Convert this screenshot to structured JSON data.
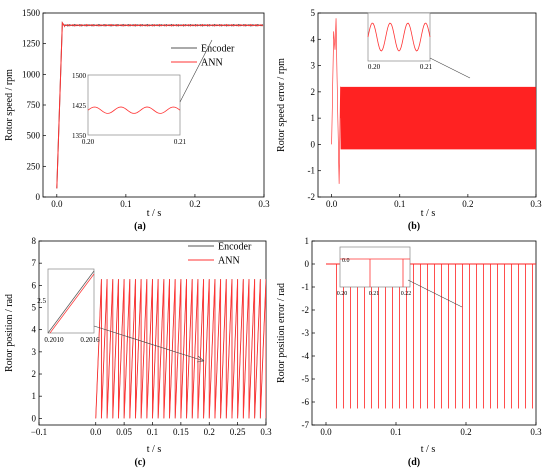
{
  "chart_data": [
    {
      "id": "a",
      "type": "line",
      "panel_label": "(a)",
      "title": "",
      "xlabel": "t / s",
      "ylabel": "Rotor speed / rpm",
      "xlim": [
        -0.02,
        0.3
      ],
      "ylim": [
        0,
        1500
      ],
      "xticks": [
        0.0,
        0.1,
        0.2,
        0.3
      ],
      "xtick_labels": [
        "0.0",
        "0.1",
        "0.2",
        "0.3"
      ],
      "yticks": [
        0,
        250,
        500,
        750,
        1000,
        1250,
        1500
      ],
      "ytick_labels": [
        "0",
        "250",
        "500",
        "750",
        "1000",
        "1250",
        "1500"
      ],
      "legend": {
        "placement": "right",
        "entries": [
          {
            "name": "Encoder",
            "color": "#555555"
          },
          {
            "name": "ANN",
            "color": "#ff3333"
          }
        ]
      },
      "series": [
        {
          "name": "Encoder",
          "color": "#555555",
          "kind": "speed",
          "steady": 1400
        },
        {
          "name": "ANN",
          "color": "#ff3333",
          "kind": "speed",
          "steady": 1400
        }
      ],
      "inset": {
        "xlim": [
          0.2,
          0.21
        ],
        "ylim": [
          1350,
          1500
        ],
        "xtick_labels": [
          "0.20",
          "0.21"
        ],
        "ytick_labels": [
          "1500",
          "1425",
          "1350"
        ],
        "steady": 1412,
        "amplitude": 8,
        "cycles": 3.5
      }
    },
    {
      "id": "b",
      "type": "line",
      "panel_label": "(b)",
      "title": "",
      "xlabel": "t / s",
      "ylabel": "Rotor speed error / rpm",
      "xlim": [
        -0.02,
        0.3
      ],
      "ylim": [
        -2,
        5
      ],
      "xticks": [
        0.0,
        0.1,
        0.2,
        0.3
      ],
      "xtick_labels": [
        "0.0",
        "0.1",
        "0.2",
        "0.3"
      ],
      "yticks": [
        -2,
        -1,
        0,
        1,
        2,
        3,
        4,
        5
      ],
      "ytick_labels": [
        "-2",
        "-1",
        "0",
        "1",
        "2",
        "3",
        "4",
        "5"
      ],
      "series": [
        {
          "name": "",
          "color": "#ff2222",
          "kind": "error-band",
          "center": 1.0,
          "amplitude": 1.25,
          "cycles": 120
        }
      ],
      "inset": {
        "xlim": [
          0.2,
          0.21
        ],
        "xtick_labels": [
          "0.20",
          "0.21"
        ],
        "cycles": 3.5
      }
    },
    {
      "id": "c",
      "type": "line",
      "panel_label": "(c)",
      "title": "",
      "xlabel": "t / s",
      "ylabel": "Rotor position / rad",
      "xlim": [
        -0.1,
        0.3
      ],
      "ylim": [
        -0.3,
        8
      ],
      "xticks": [
        -0.1,
        0.0,
        0.05,
        0.1,
        0.15,
        0.2,
        0.25,
        0.3
      ],
      "xtick_labels": [
        "−0.1",
        "0.0",
        "0.05",
        "0.1",
        "0.15",
        "0.2",
        "0.25",
        "0.3"
      ],
      "yticks": [
        0,
        1,
        2,
        3,
        4,
        5,
        6,
        7,
        8
      ],
      "ytick_labels": [
        "0",
        "1",
        "2",
        "3",
        "4",
        "5",
        "6",
        "7",
        "8"
      ],
      "legend": {
        "placement": "top-right",
        "entries": [
          {
            "name": "Encoder",
            "color": "#555555"
          },
          {
            "name": "ANN",
            "color": "#ff3333"
          }
        ]
      },
      "series": [
        {
          "name": "Encoder",
          "color": "#555555",
          "kind": "sawtooth",
          "peak": 6.28,
          "period": 0.01
        },
        {
          "name": "ANN",
          "color": "#ff3333",
          "kind": "sawtooth",
          "peak": 6.28,
          "period": 0.01
        }
      ],
      "inset": {
        "xlim": [
          0.201,
          0.2016
        ],
        "xtick_labels": [
          "0.2010",
          "0.2016"
        ],
        "ytick_labels": [
          "2.5"
        ]
      }
    },
    {
      "id": "d",
      "type": "line",
      "panel_label": "(d)",
      "title": "",
      "xlabel": "t / s",
      "ylabel": "Rotor position error / rad",
      "xlim": [
        -0.02,
        0.3
      ],
      "ylim": [
        -7,
        1
      ],
      "xticks": [
        0.0,
        0.1,
        0.2,
        0.3
      ],
      "xtick_labels": [
        "0.0",
        "0.1",
        "0.2",
        "0.3"
      ],
      "yticks": [
        -7,
        -6,
        -5,
        -4,
        -3,
        -2,
        -1,
        0,
        1
      ],
      "ytick_labels": [
        "-7",
        "-6",
        "-5",
        "-4",
        "-3",
        "-2",
        "-1",
        "0",
        "1"
      ],
      "series": [
        {
          "name": "",
          "color": "#ff2222",
          "kind": "spikes",
          "depth": -6.28,
          "period": 0.01,
          "start": 0.015
        }
      ],
      "inset": {
        "xtick_labels": [
          "0.20",
          "0.21",
          "0.22"
        ],
        "ytick_labels": [
          "0.0"
        ]
      }
    }
  ]
}
